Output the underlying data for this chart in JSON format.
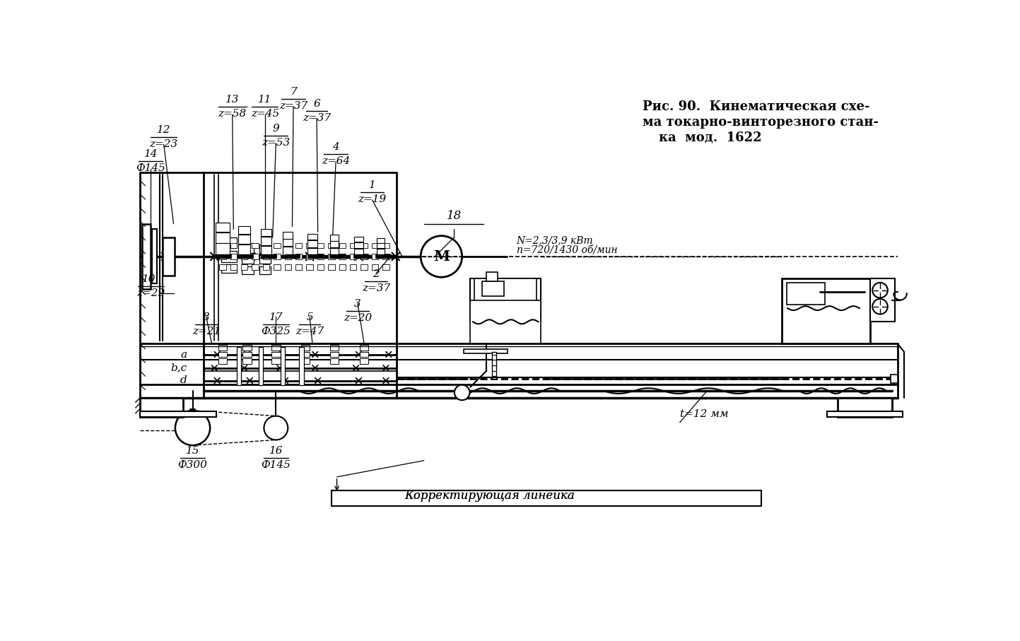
{
  "bg_color": "#ffffff",
  "lc": "#000000",
  "title": [
    "Рис. 90.  Кинематическая схе-",
    "ма токарно-винторезного стан-",
    "ка  мод.  1622"
  ],
  "motor_label": [
    "18",
    "N=2,3/3,9 кВт",
    "n=720/1430 об/мин"
  ],
  "t_label": "t=12 мм",
  "corr_label": "Корректирующая линейка"
}
